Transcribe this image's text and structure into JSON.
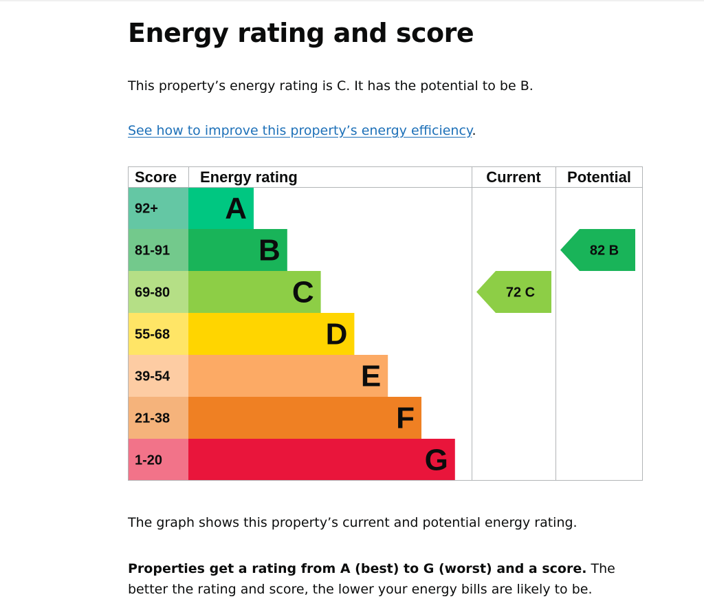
{
  "page": {
    "title": "Energy rating and score",
    "summary": "This property’s energy rating is C. It has the potential to be B.",
    "improve_link": "See how to improve this property’s energy efficiency",
    "improve_link_suffix": ".",
    "caption": "The graph shows this property’s current and potential energy rating.",
    "explain_bold": "Properties get a rating from A (best) to G (worst) and a score.",
    "explain_rest": " The better the rating and score, the lower your energy bills are likely to be."
  },
  "chart_data": {
    "type": "table",
    "headers": {
      "score": "Score",
      "rating": "Energy rating",
      "current": "Current",
      "potential": "Potential"
    },
    "bands": [
      {
        "letter": "A",
        "range": "92+",
        "color": "#00c781",
        "tint": "#64c7a4"
      },
      {
        "letter": "B",
        "range": "81-91",
        "color": "#19b459",
        "tint": "#73c98c"
      },
      {
        "letter": "C",
        "range": "69-80",
        "color": "#8dce46",
        "tint": "#b5df86"
      },
      {
        "letter": "D",
        "range": "55-68",
        "color": "#ffd500",
        "tint": "#ffe566"
      },
      {
        "letter": "E",
        "range": "39-54",
        "color": "#fcaa65",
        "tint": "#fdcca3"
      },
      {
        "letter": "F",
        "range": "21-38",
        "color": "#ef8023",
        "tint": "#f5b37b"
      },
      {
        "letter": "G",
        "range": "1-20",
        "color": "#e9153b",
        "tint": "#f27389"
      }
    ],
    "current": {
      "score": 72,
      "rating": "C",
      "label": "72  C"
    },
    "potential": {
      "score": 82,
      "rating": "B",
      "label": "82  B"
    }
  }
}
